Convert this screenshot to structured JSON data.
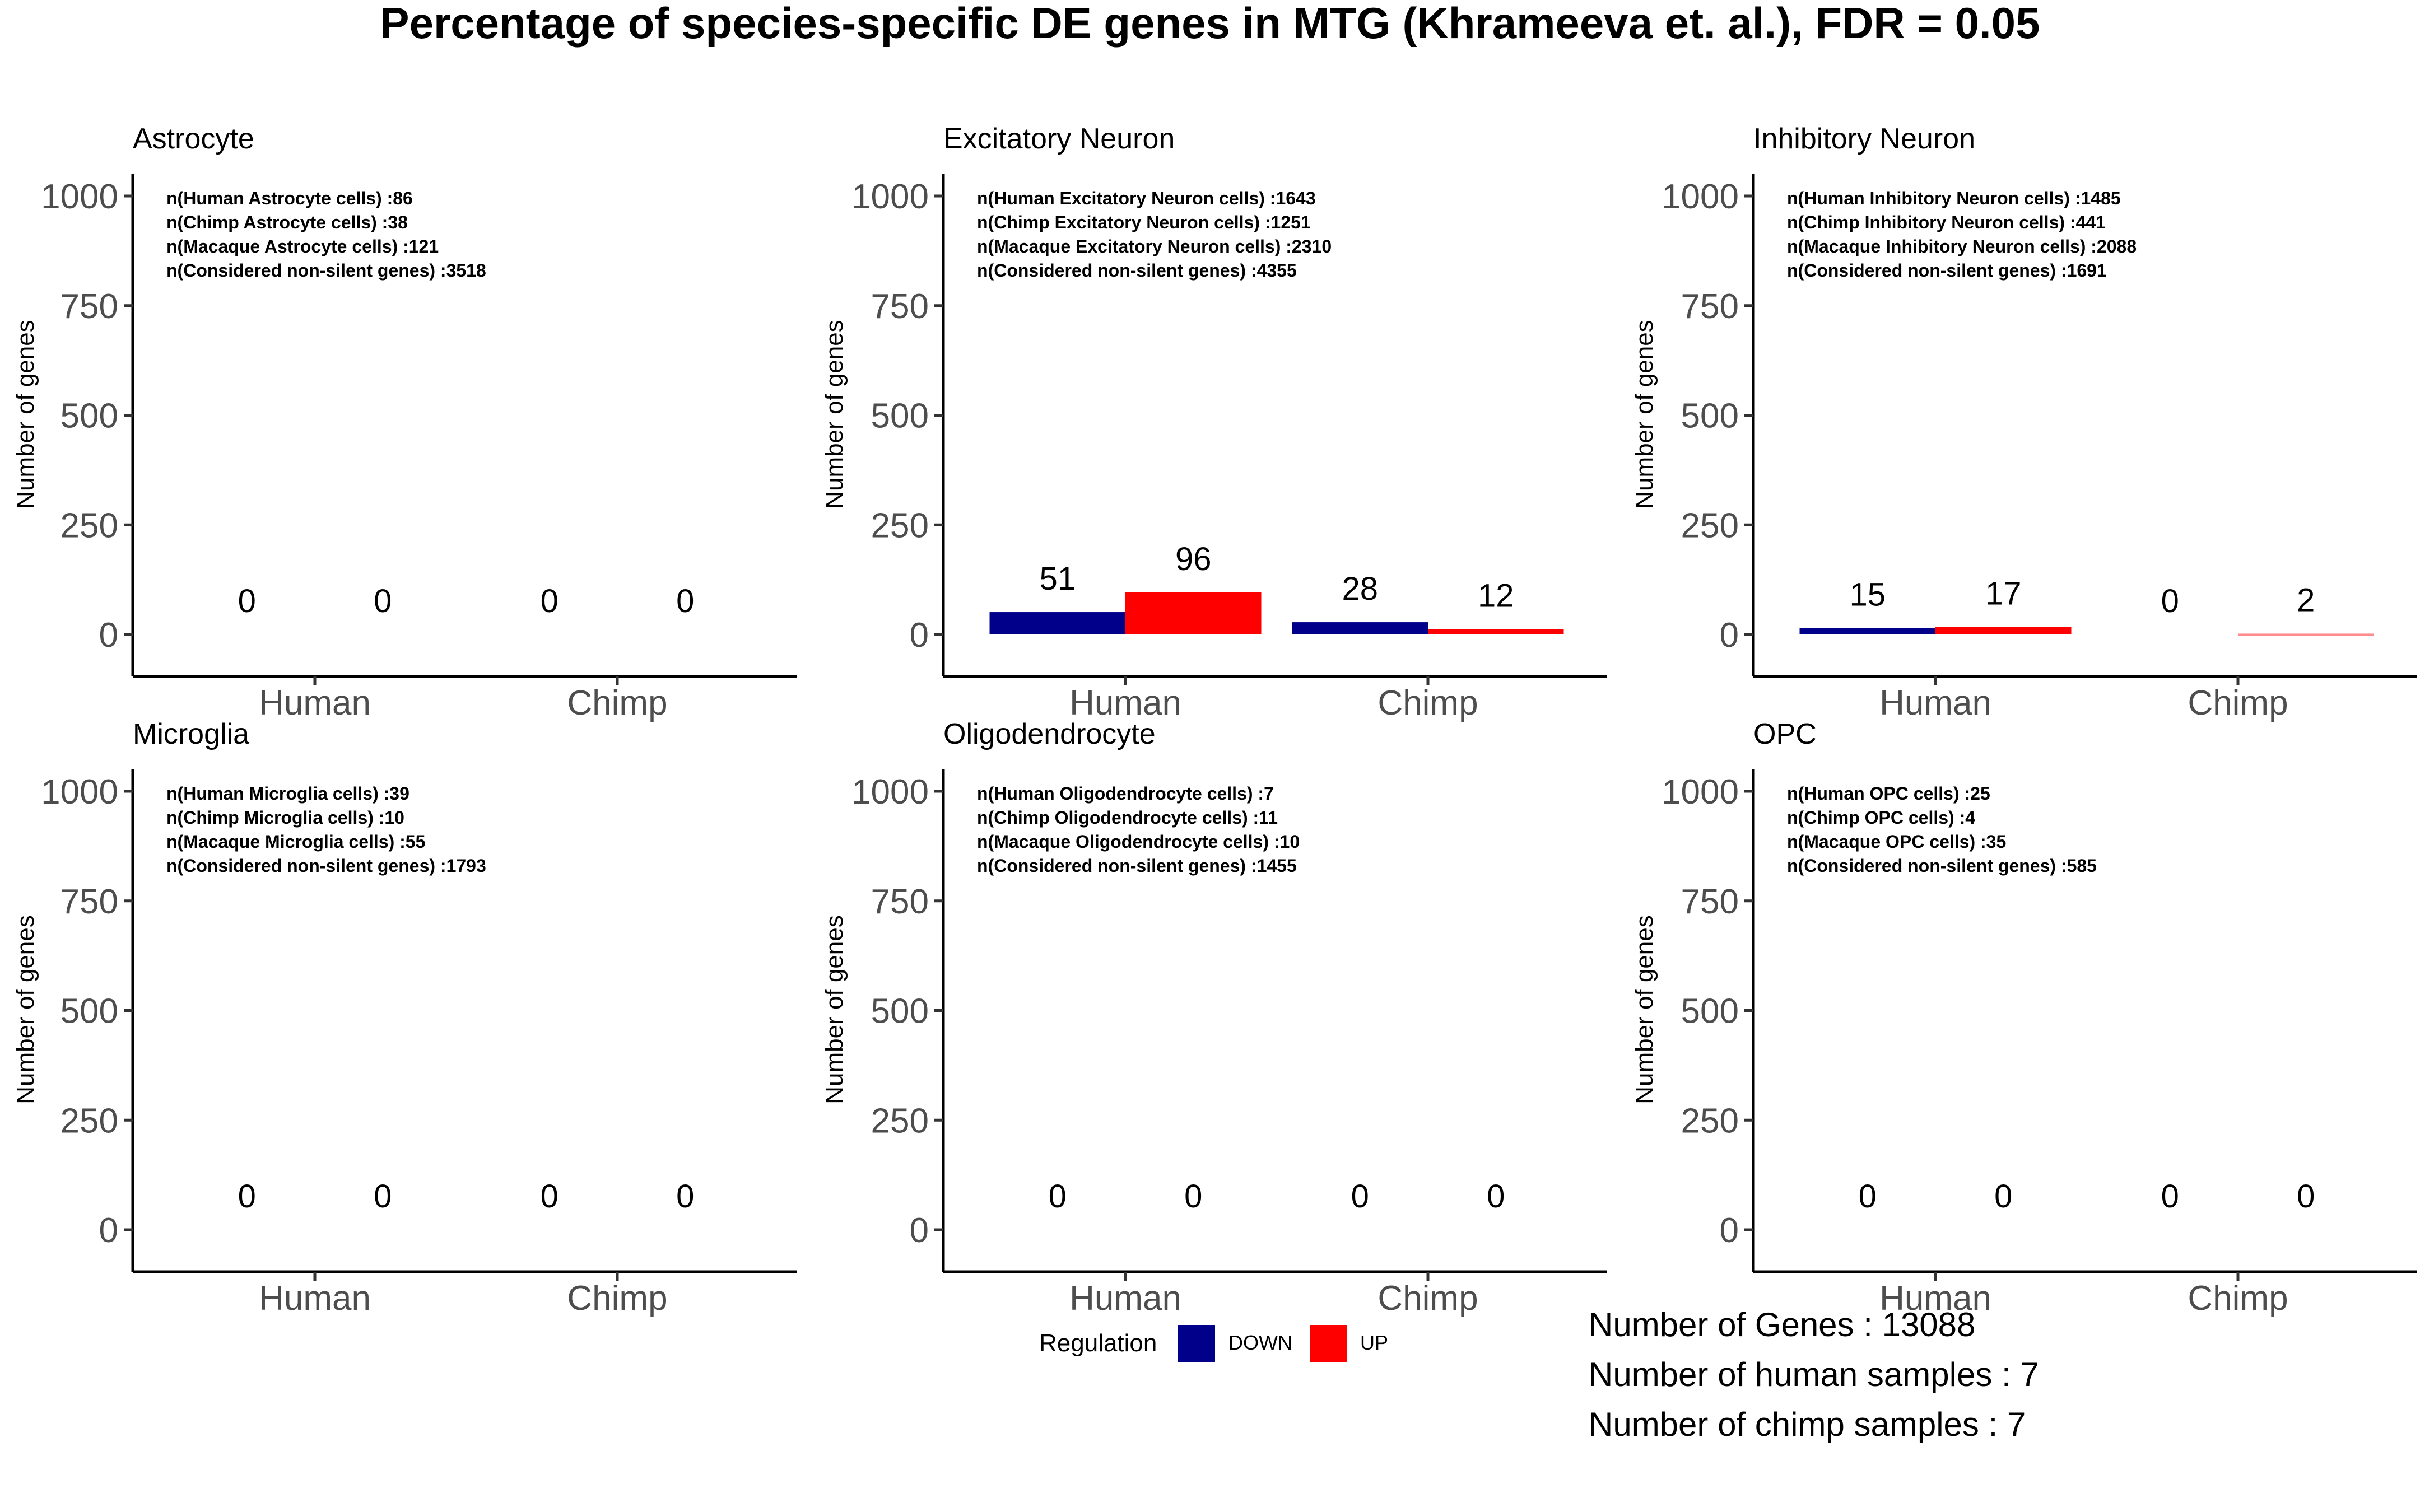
{
  "title": "Percentage of species-specific DE genes in MTG (Khrameeva et. al.), FDR = 0.05",
  "chart_data": [
    {
      "type": "bar",
      "title": "Astrocyte",
      "ylabel": "Number of genes",
      "categories": [
        "Human",
        "Chimp"
      ],
      "series": [
        {
          "name": "DOWN",
          "color": "#00008B",
          "values": [
            0,
            0
          ],
          "labels": [
            "0",
            "0"
          ]
        },
        {
          "name": "UP",
          "color": "#FF0000",
          "values": [
            0,
            0
          ],
          "labels": [
            "0",
            "0"
          ]
        }
      ],
      "ylim": [
        0,
        1000
      ],
      "yticks": [
        "0",
        "250",
        "500",
        "750",
        "1000"
      ],
      "annotations": [
        "n(Human Astrocyte cells) :86",
        "n(Chimp Astrocyte cells)  :38",
        "n(Macaque Astrocyte cells)  :121",
        "n(Considered non-silent genes) :3518"
      ]
    },
    {
      "type": "bar",
      "title": "Excitatory Neuron",
      "ylabel": "Number of genes",
      "categories": [
        "Human",
        "Chimp"
      ],
      "series": [
        {
          "name": "DOWN",
          "color": "#00008B",
          "values": [
            51,
            28
          ],
          "labels": [
            "51",
            "28"
          ]
        },
        {
          "name": "UP",
          "color": "#FF0000",
          "values": [
            96,
            12
          ],
          "labels": [
            "96",
            "12"
          ]
        }
      ],
      "ylim": [
        0,
        1000
      ],
      "yticks": [
        "0",
        "250",
        "500",
        "750",
        "1000"
      ],
      "annotations": [
        "n(Human Excitatory Neuron cells) :1643",
        "n(Chimp Excitatory Neuron cells)  :1251",
        "n(Macaque Excitatory Neuron cells)  :2310",
        "n(Considered non-silent genes) :4355"
      ]
    },
    {
      "type": "bar",
      "title": "Inhibitory Neuron",
      "ylabel": "Number of genes",
      "categories": [
        "Human",
        "Chimp"
      ],
      "series": [
        {
          "name": "DOWN",
          "color": "#00008B",
          "values": [
            15,
            0
          ],
          "labels": [
            "15",
            "0"
          ]
        },
        {
          "name": "UP",
          "color": "#FF0000",
          "values": [
            17,
            2
          ],
          "labels": [
            "17",
            "2"
          ]
        }
      ],
      "ylim": [
        0,
        1000
      ],
      "yticks": [
        "0",
        "250",
        "500",
        "750",
        "1000"
      ],
      "annotations": [
        "n(Human Inhibitory Neuron cells) :1485",
        "n(Chimp Inhibitory Neuron cells)  :441",
        "n(Macaque Inhibitory Neuron cells)  :2088",
        "n(Considered non-silent genes) :1691"
      ]
    },
    {
      "type": "bar",
      "title": "Microglia",
      "ylabel": "Number of genes",
      "categories": [
        "Human",
        "Chimp"
      ],
      "series": [
        {
          "name": "DOWN",
          "color": "#00008B",
          "values": [
            0,
            0
          ],
          "labels": [
            "0",
            "0"
          ]
        },
        {
          "name": "UP",
          "color": "#FF0000",
          "values": [
            0,
            0
          ],
          "labels": [
            "0",
            "0"
          ]
        }
      ],
      "ylim": [
        0,
        1000
      ],
      "yticks": [
        "0",
        "250",
        "500",
        "750",
        "1000"
      ],
      "annotations": [
        "n(Human Microglia cells) :39",
        "n(Chimp Microglia cells)  :10",
        "n(Macaque Microglia cells)  :55",
        "n(Considered non-silent genes) :1793"
      ]
    },
    {
      "type": "bar",
      "title": "Oligodendrocyte",
      "ylabel": "Number of genes",
      "categories": [
        "Human",
        "Chimp"
      ],
      "series": [
        {
          "name": "DOWN",
          "color": "#00008B",
          "values": [
            0,
            0
          ],
          "labels": [
            "0",
            "0"
          ]
        },
        {
          "name": "UP",
          "color": "#FF0000",
          "values": [
            0,
            0
          ],
          "labels": [
            "0",
            "0"
          ]
        }
      ],
      "ylim": [
        0,
        1000
      ],
      "yticks": [
        "0",
        "250",
        "500",
        "750",
        "1000"
      ],
      "annotations": [
        "n(Human Oligodendrocyte cells) :7",
        "n(Chimp Oligodendrocyte cells)  :11",
        "n(Macaque Oligodendrocyte cells)  :10",
        "n(Considered non-silent genes) :1455"
      ]
    },
    {
      "type": "bar",
      "title": "OPC",
      "ylabel": "Number of genes",
      "categories": [
        "Human",
        "Chimp"
      ],
      "series": [
        {
          "name": "DOWN",
          "color": "#00008B",
          "values": [
            0,
            0
          ],
          "labels": [
            "0",
            "0"
          ]
        },
        {
          "name": "UP",
          "color": "#FF0000",
          "values": [
            0,
            0
          ],
          "labels": [
            "0",
            "0"
          ]
        }
      ],
      "ylim": [
        0,
        1000
      ],
      "yticks": [
        "0",
        "250",
        "500",
        "750",
        "1000"
      ],
      "annotations": [
        "n(Human OPC cells) :25",
        "n(Chimp OPC cells)  :4",
        "n(Macaque OPC cells)  :35",
        "n(Considered non-silent genes) :585"
      ]
    }
  ],
  "legend": {
    "title": "Regulation",
    "items": [
      {
        "label": "DOWN",
        "color": "#00008B"
      },
      {
        "label": "UP",
        "color": "#FF0000"
      }
    ]
  },
  "info": [
    "Number of Genes : 13088",
    "Number of human samples : 7",
    "Number of chimp samples : 7"
  ]
}
